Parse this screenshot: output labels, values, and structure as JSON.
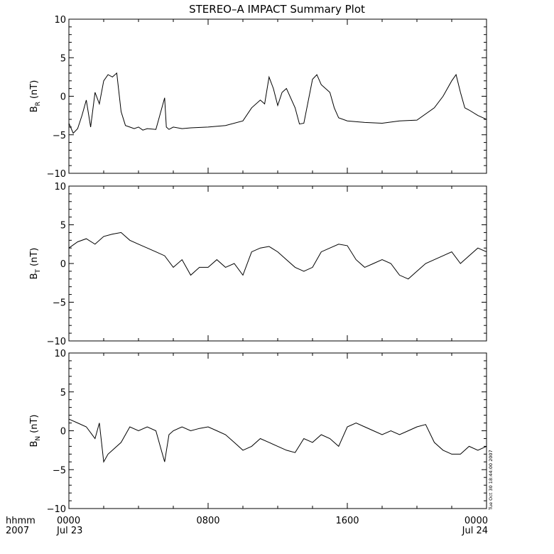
{
  "chart_data": {
    "type": "line",
    "title": "STEREO–A IMPACT Summary Plot",
    "x_unit_label": "hhmm",
    "x_year_label": "2007",
    "x_tick_labels": [
      {
        "time": "0000",
        "date": "Jul 23",
        "hour": 0
      },
      {
        "time": "0800",
        "date": "",
        "hour": 8
      },
      {
        "time": "1600",
        "date": "",
        "hour": 16
      },
      {
        "time": "0000",
        "date": "Jul 24",
        "hour": 24
      }
    ],
    "x_range_hours": [
      0,
      24
    ],
    "timestamp": "Tue Oct 30 18:44:00 2007",
    "panels": [
      {
        "ylabel_main": "B",
        "ylabel_sub": "R",
        "ylabel_unit": "(nT)",
        "ylim": [
          -10,
          10
        ],
        "y_ticks": [
          10,
          5,
          0,
          -5,
          -10
        ],
        "series": {
          "x": [
            0,
            0.25,
            0.5,
            0.75,
            1.0,
            1.25,
            1.5,
            1.75,
            2.0,
            2.25,
            2.5,
            2.75,
            3.0,
            3.25,
            3.5,
            3.75,
            4.0,
            4.25,
            4.5,
            5.0,
            5.5,
            5.6,
            5.75,
            6.0,
            6.5,
            7.0,
            8.0,
            9.0,
            10.0,
            10.5,
            11.0,
            11.25,
            11.5,
            11.75,
            12.0,
            12.25,
            12.5,
            13.0,
            13.25,
            13.5,
            14.0,
            14.25,
            14.5,
            15.0,
            15.25,
            15.5,
            16.0,
            17.0,
            18.0,
            19.0,
            20.0,
            21.0,
            21.5,
            22.0,
            22.25,
            22.5,
            22.75,
            23.0,
            23.5,
            24.0
          ],
          "y": [
            -3.5,
            -4.8,
            -4.2,
            -2.5,
            -0.5,
            -4.0,
            0.5,
            -1.0,
            2.0,
            2.8,
            2.5,
            3.0,
            -2.0,
            -3.8,
            -4.0,
            -4.2,
            -4.0,
            -4.4,
            -4.2,
            -4.3,
            -0.2,
            -4.0,
            -4.3,
            -4.0,
            -4.2,
            -4.1,
            -4.0,
            -3.8,
            -3.2,
            -1.5,
            -0.5,
            -1.0,
            2.5,
            1.0,
            -1.2,
            0.5,
            1.0,
            -1.5,
            -3.6,
            -3.5,
            2.2,
            2.8,
            1.5,
            0.5,
            -1.5,
            -2.8,
            -3.2,
            -3.4,
            -3.5,
            -3.2,
            -3.1,
            -1.5,
            0.0,
            2.0,
            2.8,
            0.5,
            -1.5,
            -1.8,
            -2.5,
            -3.0
          ]
        }
      },
      {
        "ylabel_main": "B",
        "ylabel_sub": "T",
        "ylabel_unit": "(nT)",
        "ylim": [
          -10,
          10
        ],
        "y_ticks": [
          10,
          5,
          0,
          -5,
          -10
        ],
        "series": {
          "x": [
            0,
            0.5,
            1.0,
            1.5,
            2.0,
            2.5,
            3.0,
            3.5,
            4.0,
            4.5,
            5.0,
            5.5,
            6.0,
            6.5,
            7.0,
            7.5,
            8.0,
            8.5,
            9.0,
            9.5,
            10.0,
            10.5,
            11.0,
            11.5,
            12.0,
            12.5,
            13.0,
            13.5,
            14.0,
            14.5,
            15.0,
            15.5,
            16.0,
            16.5,
            17.0,
            17.5,
            18.0,
            18.5,
            19.0,
            19.5,
            20.0,
            20.5,
            21.0,
            21.5,
            22.0,
            22.5,
            23.0,
            23.5,
            24.0
          ],
          "y": [
            2.0,
            2.8,
            3.2,
            2.5,
            3.5,
            3.8,
            4.0,
            3.0,
            2.5,
            2.0,
            1.5,
            1.0,
            -0.5,
            0.5,
            -1.5,
            -0.5,
            -0.5,
            0.5,
            -0.5,
            0.0,
            -1.5,
            1.5,
            2.0,
            2.2,
            1.5,
            0.5,
            -0.5,
            -1.0,
            -0.5,
            1.5,
            2.0,
            2.5,
            2.3,
            0.5,
            -0.5,
            0.0,
            0.5,
            0.0,
            -1.5,
            -2.0,
            -1.0,
            0.0,
            0.5,
            1.0,
            1.5,
            0.0,
            1.0,
            2.0,
            1.5
          ]
        }
      },
      {
        "ylabel_main": "B",
        "ylabel_sub": "N",
        "ylabel_unit": "(nT)",
        "ylim": [
          -10,
          10
        ],
        "y_ticks": [
          10,
          5,
          0,
          -5,
          -10
        ],
        "series": {
          "x": [
            0,
            0.5,
            1.0,
            1.5,
            1.75,
            2.0,
            2.25,
            2.5,
            3.0,
            3.5,
            4.0,
            4.5,
            5.0,
            5.25,
            5.5,
            5.75,
            6.0,
            6.5,
            7.0,
            7.5,
            8.0,
            8.5,
            9.0,
            9.5,
            10.0,
            10.5,
            11.0,
            11.5,
            12.0,
            12.5,
            13.0,
            13.5,
            14.0,
            14.5,
            15.0,
            15.5,
            16.0,
            16.5,
            17.0,
            17.5,
            18.0,
            18.5,
            19.0,
            19.5,
            20.0,
            20.5,
            21.0,
            21.5,
            22.0,
            22.5,
            23.0,
            23.5,
            24.0
          ],
          "y": [
            1.5,
            1.0,
            0.5,
            -1.0,
            1.0,
            -4.0,
            -3.0,
            -2.5,
            -1.5,
            0.5,
            0.0,
            0.5,
            0.0,
            -2.0,
            -4.0,
            -0.5,
            0.0,
            0.5,
            0.0,
            0.3,
            0.5,
            0.0,
            -0.5,
            -1.5,
            -2.5,
            -2.0,
            -1.0,
            -1.5,
            -2.0,
            -2.5,
            -2.8,
            -1.0,
            -1.5,
            -0.5,
            -1.0,
            -2.0,
            0.5,
            1.0,
            0.5,
            0.0,
            -0.5,
            0.0,
            -0.5,
            0.0,
            0.5,
            0.8,
            -1.5,
            -2.5,
            -3.0,
            -3.0,
            -2.0,
            -2.5,
            -2.0
          ]
        }
      }
    ]
  }
}
